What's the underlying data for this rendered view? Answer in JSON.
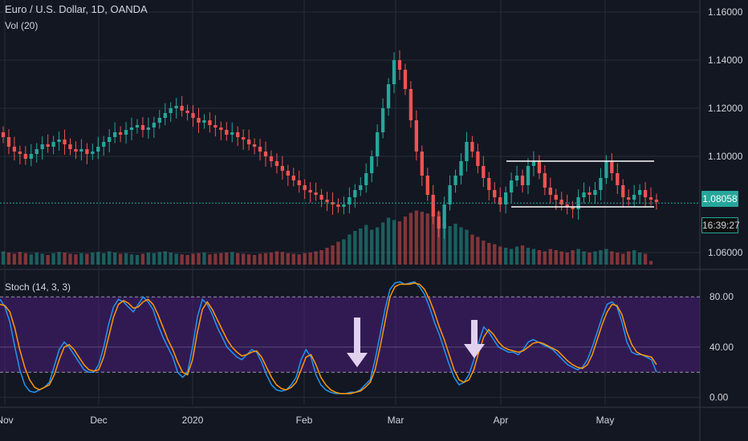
{
  "header": {
    "title": "Euro / U.S. Dollar, 1D, OANDA",
    "volume_label": "Vol (20)",
    "stoch_label": "Stoch (14, 3, 3)"
  },
  "price_axis": {
    "ticks": [
      "1.16000",
      "1.14000",
      "1.12000",
      "1.10000",
      "1.06000"
    ],
    "tick_values": [
      1.16,
      1.14,
      1.12,
      1.1,
      1.06
    ],
    "current_price": "1.08058",
    "countdown": "16:39:27"
  },
  "stoch_axis": {
    "ticks": [
      "80.00",
      "40.00",
      "0.00"
    ],
    "tick_values": [
      80,
      40,
      0
    ],
    "bands": [
      20,
      80
    ]
  },
  "time_axis": {
    "labels": [
      "Nov",
      "Dec",
      "2020",
      "Feb",
      "Mar",
      "Apr",
      "May"
    ]
  },
  "colors": {
    "background": "#131722",
    "grid": "#2a2e39",
    "up": "#26a69a",
    "down": "#ef5350",
    "stoch_k": "#2196f3",
    "stoch_d": "#ff9800",
    "stoch_band": "#4a1e7a",
    "arrow": "#e1d0ee",
    "price_line": "#26a69a"
  },
  "chart_data": [
    {
      "type": "candlestick",
      "title": "Euro / U.S. Dollar, 1D, OANDA",
      "xlabel": "",
      "ylabel": "",
      "ylim": [
        1.055,
        1.165
      ],
      "x": [
        "Nov",
        "Dec",
        "2020",
        "Feb",
        "Mar",
        "Apr",
        "May"
      ],
      "close_series": [
        1.108,
        1.104,
        1.102,
        1.101,
        1.099,
        1.101,
        1.103,
        1.105,
        1.104,
        1.106,
        1.107,
        1.105,
        1.103,
        1.102,
        1.103,
        1.101,
        1.102,
        1.104,
        1.106,
        1.108,
        1.11,
        1.109,
        1.111,
        1.112,
        1.113,
        1.111,
        1.112,
        1.114,
        1.116,
        1.118,
        1.12,
        1.121,
        1.119,
        1.118,
        1.116,
        1.114,
        1.115,
        1.113,
        1.112,
        1.111,
        1.109,
        1.11,
        1.108,
        1.107,
        1.105,
        1.104,
        1.102,
        1.1,
        1.098,
        1.096,
        1.094,
        1.092,
        1.09,
        1.088,
        1.086,
        1.085,
        1.084,
        1.082,
        1.081,
        1.08,
        1.079,
        1.08,
        1.083,
        1.086,
        1.088,
        1.093,
        1.1,
        1.11,
        1.12,
        1.13,
        1.14,
        1.136,
        1.128,
        1.115,
        1.102,
        1.092,
        1.084,
        1.075,
        1.07,
        1.08,
        1.088,
        1.092,
        1.098,
        1.106,
        1.102,
        1.096,
        1.091,
        1.086,
        1.083,
        1.08,
        1.085,
        1.09,
        1.092,
        1.088,
        1.096,
        1.098,
        1.093,
        1.087,
        1.084,
        1.082,
        1.08,
        1.079,
        1.078,
        1.083,
        1.085,
        1.084,
        1.086,
        1.091,
        1.098,
        1.093,
        1.088,
        1.083,
        1.082,
        1.084,
        1.086,
        1.083,
        1.082,
        1.081
      ],
      "annotations": {
        "resistance": 1.098,
        "support": 1.079,
        "last_price": 1.08058
      }
    },
    {
      "type": "bar",
      "title": "Vol (20)",
      "values": [
        22,
        20,
        18,
        21,
        19,
        17,
        20,
        18,
        16,
        19,
        21,
        20,
        18,
        17,
        19,
        18,
        20,
        21,
        19,
        22,
        20,
        18,
        19,
        17,
        16,
        18,
        20,
        19,
        21,
        22,
        20,
        18,
        17,
        16,
        18,
        19,
        20,
        17,
        18,
        19,
        20,
        21,
        19,
        18,
        17,
        16,
        18,
        19,
        20,
        22,
        21,
        19,
        18,
        17,
        19,
        20,
        22,
        24,
        28,
        32,
        38,
        42,
        50,
        56,
        60,
        66,
        58,
        62,
        70,
        78,
        74,
        72,
        80,
        86,
        90,
        88,
        85,
        96,
        88,
        70,
        64,
        68,
        62,
        58,
        50,
        46,
        40,
        36,
        34,
        30,
        28,
        26,
        30,
        32,
        28,
        26,
        24,
        22,
        26,
        24,
        22,
        20,
        24,
        26,
        22,
        20,
        22,
        24,
        26,
        22,
        20,
        18,
        22,
        24,
        20,
        18,
        6
      ]
    },
    {
      "type": "line",
      "title": "Stoch (14, 3, 3)",
      "ylim": [
        -6,
        98
      ],
      "series": [
        {
          "values": [
            78,
            72,
            60,
            40,
            22,
            10,
            5,
            4,
            6,
            8,
            12,
            25,
            38,
            44,
            40,
            34,
            28,
            22,
            20,
            20,
            26,
            40,
            58,
            72,
            78,
            76,
            72,
            68,
            74,
            80,
            76,
            70,
            58,
            48,
            40,
            32,
            20,
            16,
            20,
            40,
            64,
            78,
            74,
            66,
            56,
            48,
            40,
            36,
            32,
            30,
            34,
            38,
            36,
            28,
            18,
            10,
            6,
            5,
            6,
            10,
            16,
            30,
            38,
            32,
            18,
            10,
            6,
            4,
            3,
            3,
            3,
            4,
            4,
            6,
            10,
            14,
            30,
            50,
            70,
            86,
            91,
            92,
            90,
            91,
            92,
            88,
            82,
            72,
            60,
            50,
            38,
            26,
            16,
            10,
            12,
            18,
            30,
            44,
            56,
            52,
            46,
            40,
            38,
            36,
            36,
            34,
            38,
            44,
            46,
            44,
            42,
            40,
            38,
            34,
            30,
            26,
            24,
            22,
            24,
            30,
            40,
            52,
            64,
            74,
            76,
            72,
            60,
            44,
            36,
            34,
            34,
            32,
            30,
            20
          ]
        },
        {
          "values": [
            74,
            73,
            68,
            55,
            38,
            24,
            14,
            8,
            6,
            8,
            10,
            18,
            30,
            40,
            42,
            38,
            32,
            26,
            22,
            21,
            22,
            32,
            48,
            64,
            74,
            77,
            75,
            71,
            72,
            76,
            78,
            74,
            66,
            56,
            46,
            38,
            28,
            20,
            18,
            30,
            52,
            70,
            76,
            70,
            62,
            54,
            46,
            40,
            36,
            33,
            34,
            36,
            37,
            32,
            24,
            16,
            10,
            7,
            6,
            8,
            12,
            22,
            32,
            34,
            26,
            16,
            10,
            6,
            4,
            3,
            3,
            3,
            4,
            5,
            8,
            12,
            22,
            40,
            60,
            80,
            88,
            90,
            90,
            90,
            91,
            90,
            86,
            78,
            68,
            56,
            46,
            34,
            22,
            14,
            12,
            14,
            22,
            36,
            48,
            54,
            50,
            44,
            40,
            38,
            37,
            36,
            37,
            40,
            43,
            44,
            43,
            41,
            39,
            37,
            33,
            29,
            26,
            24,
            23,
            26,
            34,
            46,
            58,
            68,
            74,
            73,
            66,
            52,
            42,
            36,
            34,
            33,
            32,
            26
          ]
        }
      ],
      "annotations": {
        "arrows": [
          "down",
          "down"
        ]
      }
    }
  ]
}
